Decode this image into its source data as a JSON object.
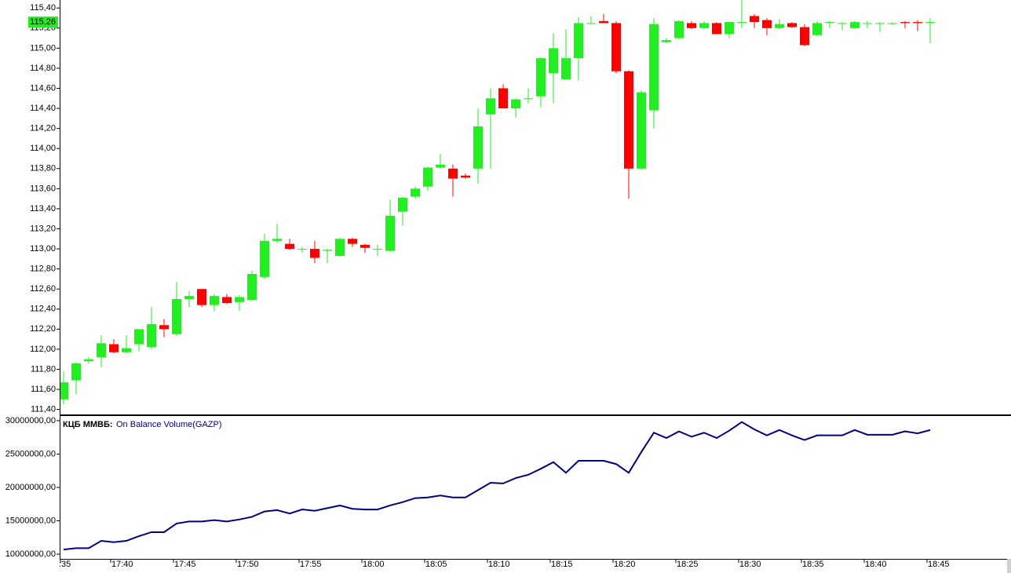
{
  "chart_data": [
    {
      "type": "candlestick",
      "up_color": "#22ee22",
      "down_color": "#ff0000",
      "ylim": [
        111.35,
        115.48
      ],
      "yticks": [
        {
          "value": 111.4,
          "label": "111,40"
        },
        {
          "value": 111.6,
          "label": "111,60"
        },
        {
          "value": 111.8,
          "label": "111,80"
        },
        {
          "value": 112.0,
          "label": "112,00"
        },
        {
          "value": 112.2,
          "label": "112,20"
        },
        {
          "value": 112.4,
          "label": "112,40"
        },
        {
          "value": 112.6,
          "label": "112,60"
        },
        {
          "value": 112.8,
          "label": "112,80"
        },
        {
          "value": 113.0,
          "label": "113,00"
        },
        {
          "value": 113.2,
          "label": "113,20"
        },
        {
          "value": 113.4,
          "label": "113,40"
        },
        {
          "value": 113.6,
          "label": "113,60"
        },
        {
          "value": 113.8,
          "label": "113,80"
        },
        {
          "value": 114.0,
          "label": "114,00"
        },
        {
          "value": 114.2,
          "label": "114,20"
        },
        {
          "value": 114.4,
          "label": "114,40"
        },
        {
          "value": 114.6,
          "label": "114,60"
        },
        {
          "value": 114.8,
          "label": "114,80"
        },
        {
          "value": 115.0,
          "label": "115,00"
        },
        {
          "value": 115.2,
          "label": "115,20"
        },
        {
          "value": 115.4,
          "label": "115,40"
        }
      ],
      "last_price": {
        "value": 115.26,
        "label": "115,26"
      },
      "open": [
        null,
        111.5,
        111.69,
        111.88,
        111.92,
        112.05,
        111.97,
        112.05,
        112.02,
        112.24,
        112.15,
        112.5,
        112.6,
        112.44,
        112.52,
        112.47,
        112.49,
        112.72,
        113.08,
        113.05,
        113.0,
        113.0,
        112.98,
        112.93,
        113.1,
        113.04,
        113.0,
        112.98,
        113.37,
        113.52,
        113.62,
        113.81,
        113.8,
        113.73,
        113.8,
        114.34,
        114.6,
        114.4,
        114.5,
        114.52,
        114.75,
        114.69,
        114.9,
        115.25,
        115.27,
        115.25,
        114.77,
        113.8,
        114.38,
        115.06,
        115.1,
        115.25,
        115.2,
        115.25,
        115.14,
        115.26,
        115.32,
        115.28,
        115.2,
        115.25,
        115.21,
        115.13,
        115.26,
        115.25,
        115.2,
        115.25,
        115.25,
        115.25,
        115.26,
        115.26,
        115.26
      ],
      "high": [
        null,
        111.78,
        111.87,
        111.92,
        112.14,
        112.1,
        112.14,
        112.2,
        112.42,
        112.3,
        112.67,
        112.58,
        112.6,
        112.55,
        112.55,
        112.54,
        112.78,
        113.15,
        113.25,
        113.1,
        113.02,
        113.08,
        113.0,
        113.11,
        113.11,
        113.05,
        113.04,
        113.49,
        113.52,
        113.62,
        113.82,
        113.95,
        113.84,
        113.75,
        114.4,
        114.6,
        114.64,
        114.5,
        114.6,
        114.91,
        115.15,
        115.19,
        115.31,
        115.32,
        115.34,
        115.27,
        114.78,
        114.58,
        115.3,
        115.1,
        115.28,
        115.27,
        115.27,
        115.26,
        115.26,
        115.49,
        115.34,
        115.3,
        115.29,
        115.26,
        115.24,
        115.27,
        115.27,
        115.26,
        115.27,
        115.27,
        115.26,
        115.26,
        115.27,
        115.28,
        115.3
      ],
      "low": [
        null,
        111.45,
        111.55,
        111.86,
        111.82,
        111.96,
        111.96,
        111.98,
        112.0,
        112.12,
        112.13,
        112.42,
        112.42,
        112.38,
        112.45,
        112.38,
        112.48,
        112.7,
        113.06,
        112.99,
        112.96,
        112.86,
        112.86,
        112.92,
        113.02,
        112.96,
        112.93,
        112.97,
        113.23,
        113.5,
        113.58,
        113.8,
        113.52,
        113.7,
        113.65,
        113.8,
        114.4,
        114.31,
        114.45,
        114.41,
        114.45,
        114.69,
        114.68,
        115.24,
        115.25,
        114.75,
        113.5,
        113.79,
        114.2,
        115.05,
        115.09,
        115.19,
        115.19,
        115.14,
        115.1,
        115.2,
        115.2,
        115.13,
        115.19,
        115.2,
        115.02,
        115.12,
        115.2,
        115.18,
        115.19,
        115.2,
        115.16,
        115.23,
        115.2,
        115.17,
        115.05
      ],
      "close": [
        null,
        111.67,
        111.86,
        111.9,
        112.06,
        111.97,
        112.01,
        112.2,
        112.25,
        112.2,
        112.5,
        112.53,
        112.44,
        112.53,
        112.46,
        112.52,
        112.75,
        113.08,
        113.1,
        113.0,
        113.0,
        112.91,
        112.99,
        113.1,
        113.05,
        113.01,
        113.0,
        113.33,
        113.51,
        113.6,
        113.81,
        113.84,
        113.7,
        113.71,
        114.22,
        114.5,
        114.4,
        114.49,
        114.5,
        114.9,
        115.0,
        114.9,
        115.25,
        115.25,
        115.25,
        114.77,
        113.8,
        114.56,
        115.24,
        115.08,
        115.27,
        115.2,
        115.25,
        115.14,
        115.26,
        115.26,
        115.26,
        115.2,
        115.24,
        115.21,
        115.03,
        115.25,
        115.26,
        115.25,
        115.26,
        115.25,
        115.25,
        115.25,
        115.25,
        115.25,
        115.26
      ]
    },
    {
      "type": "line",
      "source": "КЦБ ММВБ:",
      "title": "On Balance Volume(GAZP)",
      "color": "#000080",
      "ylim": [
        9300000,
        30700000
      ],
      "yticks": [
        {
          "value": 10000000,
          "label": "10000000,00"
        },
        {
          "value": 15000000,
          "label": "15000000,00"
        },
        {
          "value": 20000000,
          "label": "20000000,00"
        },
        {
          "value": 25000000,
          "label": "25000000,00"
        },
        {
          "value": 30000000,
          "label": "30000000,00"
        }
      ],
      "categories": [
        ":35",
        null,
        null,
        null,
        null,
        "17:40",
        null,
        null,
        null,
        null,
        "17:45",
        null,
        null,
        null,
        null,
        "17:50",
        null,
        null,
        null,
        null,
        "17:55",
        null,
        null,
        null,
        null,
        "18:00",
        null,
        null,
        null,
        null,
        "18:05",
        null,
        null,
        null,
        null,
        "18:10",
        null,
        null,
        null,
        null,
        "18:15",
        null,
        null,
        null,
        null,
        "18:20",
        null,
        null,
        null,
        null,
        "18:25",
        null,
        null,
        null,
        null,
        "18:30",
        null,
        null,
        null,
        null,
        "18:35",
        null,
        null,
        null,
        null,
        "18:40",
        null,
        null,
        null,
        null,
        "18:45"
      ],
      "values": [
        null,
        10700000,
        10900000,
        10900000,
        12000000,
        11800000,
        12000000,
        12700000,
        13300000,
        13300000,
        14600000,
        14900000,
        14900000,
        15100000,
        14900000,
        15200000,
        15600000,
        16400000,
        16600000,
        16100000,
        16700000,
        16500000,
        16900000,
        17300000,
        16800000,
        16700000,
        16700000,
        17300000,
        17800000,
        18400000,
        18500000,
        18800000,
        18500000,
        18500000,
        19600000,
        20700000,
        20600000,
        21400000,
        21900000,
        22800000,
        23800000,
        22200000,
        24000000,
        24000000,
        24000000,
        23500000,
        22200000,
        25300000,
        28200000,
        27400000,
        28400000,
        27600000,
        28200000,
        27400000,
        28500000,
        29800000,
        28700000,
        27800000,
        28600000,
        27800000,
        27100000,
        27800000,
        27800000,
        27800000,
        28600000,
        27900000,
        27900000,
        27900000,
        28400000,
        28100000,
        28600000
      ]
    }
  ]
}
